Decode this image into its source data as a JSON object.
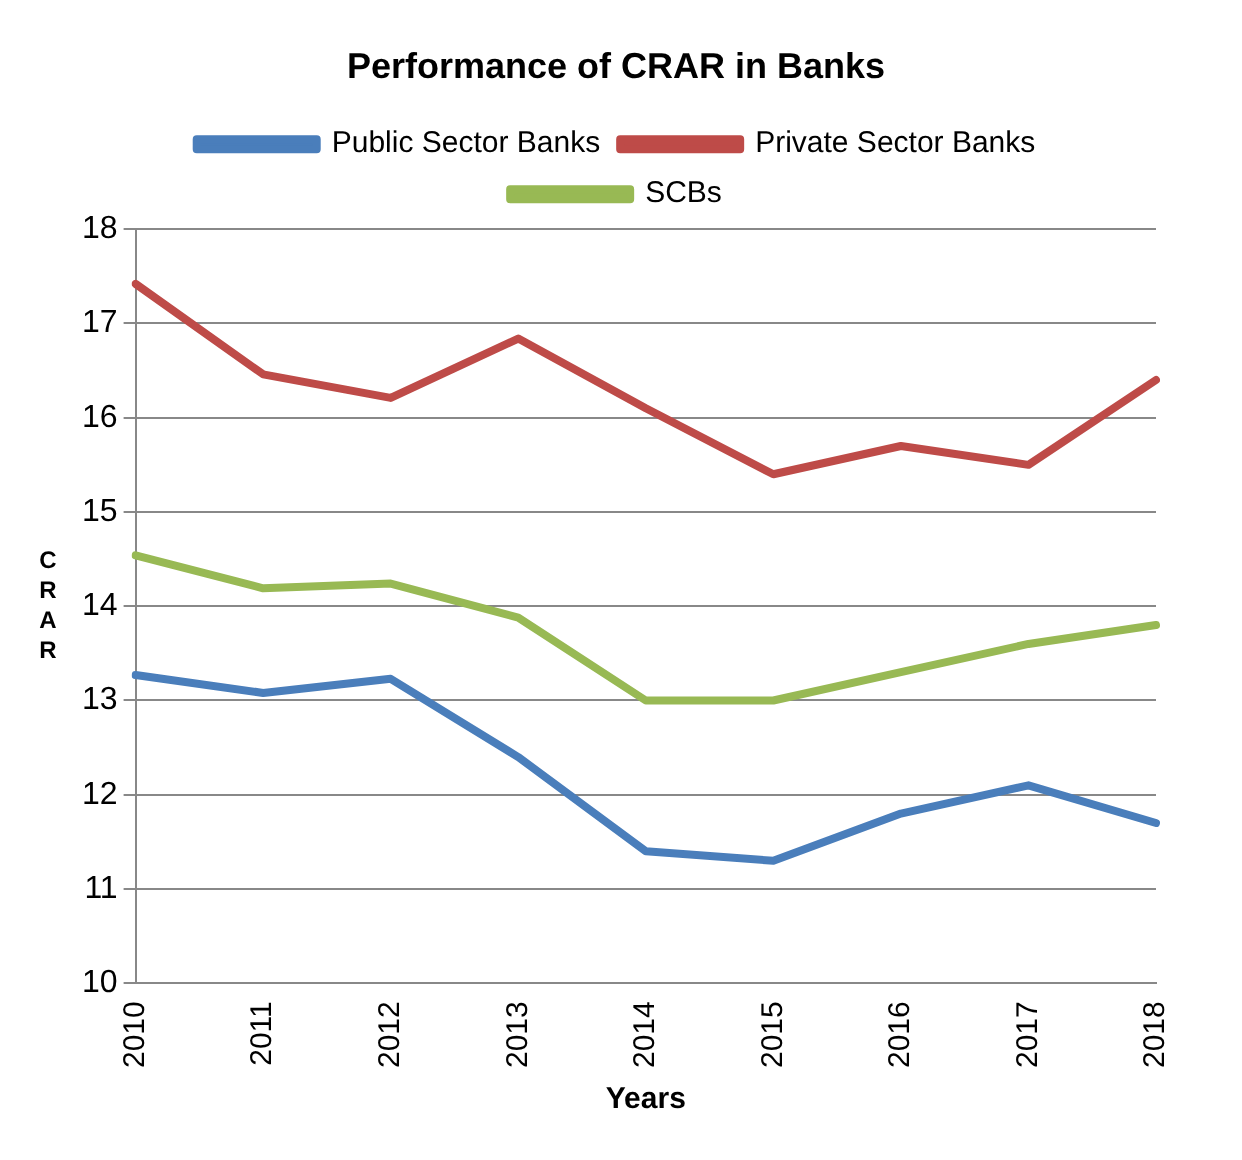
{
  "chart_data": {
    "type": "line",
    "title": "Performance of CRAR in Banks",
    "xlabel": "Years",
    "ylabel": "CRAR",
    "categories": [
      "2010",
      "2011",
      "2012",
      "2013",
      "2014",
      "2015",
      "2016",
      "2017",
      "2018"
    ],
    "series": [
      {
        "name": "Public Sector Banks",
        "color": "#4a7ebb",
        "values": [
          13.27,
          13.08,
          13.23,
          12.4,
          11.4,
          11.3,
          11.8,
          12.1,
          11.7
        ]
      },
      {
        "name": "Private Sector Banks",
        "color": "#be4b48",
        "values": [
          17.42,
          16.46,
          16.21,
          16.84,
          16.1,
          15.4,
          15.7,
          15.5,
          16.4
        ]
      },
      {
        "name": "SCBs",
        "color": "#98b954",
        "values": [
          14.54,
          14.19,
          14.24,
          13.88,
          13.0,
          13.0,
          13.3,
          13.6,
          13.8
        ]
      }
    ],
    "ylim": [
      10,
      18
    ],
    "yticks": [
      10,
      11,
      12,
      13,
      14,
      15,
      16,
      17,
      18
    ],
    "grid": "y",
    "legend": "top",
    "marker": "none",
    "line_style": "solid"
  }
}
